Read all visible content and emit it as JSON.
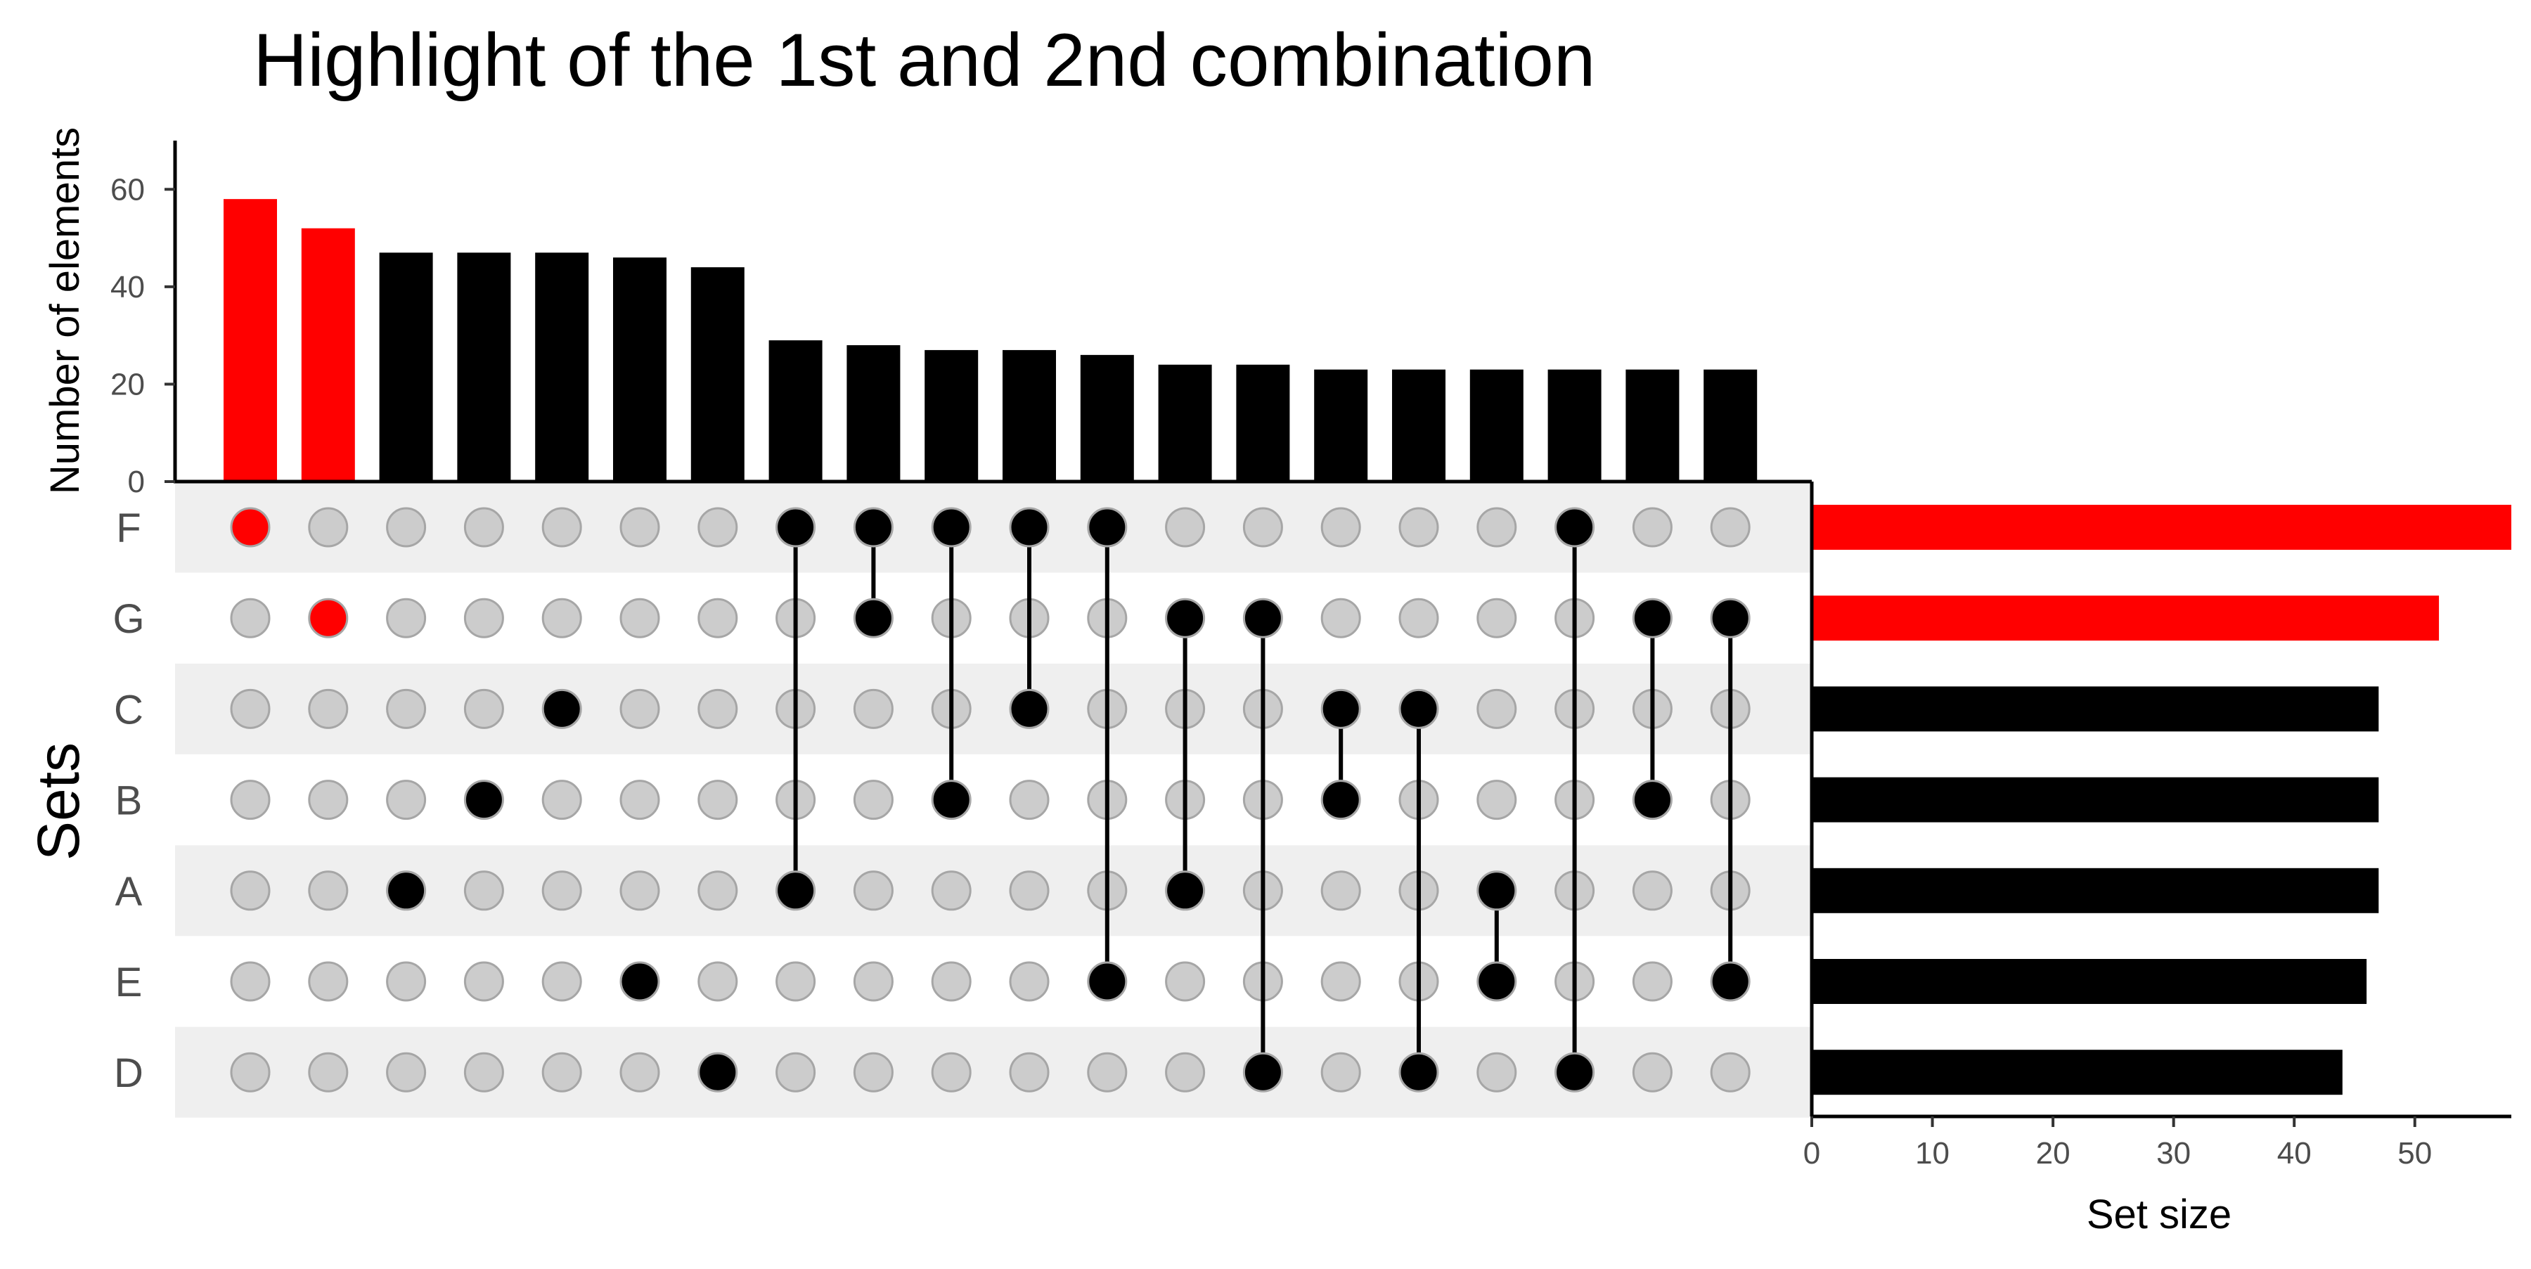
{
  "chart_data": {
    "type": "upset",
    "title": "Highlight of the 1st and 2nd combination",
    "intersection_axis": {
      "label": "Number of elements",
      "ylim": [
        0,
        70
      ],
      "ticks": [
        0,
        20,
        40,
        60
      ]
    },
    "set_size_axis": {
      "label": "Set size",
      "xlim": [
        0,
        58
      ],
      "ticks": [
        0,
        10,
        20,
        30,
        40,
        50
      ]
    },
    "sets_label": "Sets",
    "sets": [
      {
        "name": "F",
        "size": 58,
        "highlight": true
      },
      {
        "name": "G",
        "size": 52,
        "highlight": true
      },
      {
        "name": "C",
        "size": 47,
        "highlight": false
      },
      {
        "name": "B",
        "size": 47,
        "highlight": false
      },
      {
        "name": "A",
        "size": 47,
        "highlight": false
      },
      {
        "name": "E",
        "size": 46,
        "highlight": false
      },
      {
        "name": "D",
        "size": 44,
        "highlight": false
      }
    ],
    "intersections": [
      {
        "sets": [
          "F"
        ],
        "value": 58,
        "highlight": true
      },
      {
        "sets": [
          "G"
        ],
        "value": 52,
        "highlight": true
      },
      {
        "sets": [
          "A"
        ],
        "value": 47,
        "highlight": false
      },
      {
        "sets": [
          "B"
        ],
        "value": 47,
        "highlight": false
      },
      {
        "sets": [
          "C"
        ],
        "value": 47,
        "highlight": false
      },
      {
        "sets": [
          "E"
        ],
        "value": 46,
        "highlight": false
      },
      {
        "sets": [
          "D"
        ],
        "value": 44,
        "highlight": false
      },
      {
        "sets": [
          "F",
          "A"
        ],
        "value": 29,
        "highlight": false
      },
      {
        "sets": [
          "F",
          "G"
        ],
        "value": 28,
        "highlight": false
      },
      {
        "sets": [
          "F",
          "B"
        ],
        "value": 27,
        "highlight": false
      },
      {
        "sets": [
          "F",
          "C"
        ],
        "value": 27,
        "highlight": false
      },
      {
        "sets": [
          "F",
          "E"
        ],
        "value": 26,
        "highlight": false
      },
      {
        "sets": [
          "G",
          "A"
        ],
        "value": 24,
        "highlight": false
      },
      {
        "sets": [
          "G",
          "D"
        ],
        "value": 24,
        "highlight": false
      },
      {
        "sets": [
          "C",
          "B"
        ],
        "value": 23,
        "highlight": false
      },
      {
        "sets": [
          "C",
          "D"
        ],
        "value": 23,
        "highlight": false
      },
      {
        "sets": [
          "A",
          "E"
        ],
        "value": 23,
        "highlight": false
      },
      {
        "sets": [
          "F",
          "D"
        ],
        "value": 23,
        "highlight": false
      },
      {
        "sets": [
          "G",
          "B"
        ],
        "value": 23,
        "highlight": false
      },
      {
        "sets": [
          "G",
          "E"
        ],
        "value": 23,
        "highlight": false
      }
    ],
    "colors": {
      "highlight": "#ff0000",
      "default": "#000000",
      "inactive_dot": "#cccccc",
      "inactive_dot_stroke": "#a6a6a6",
      "stripe": "#efefef"
    },
    "grid": false
  }
}
